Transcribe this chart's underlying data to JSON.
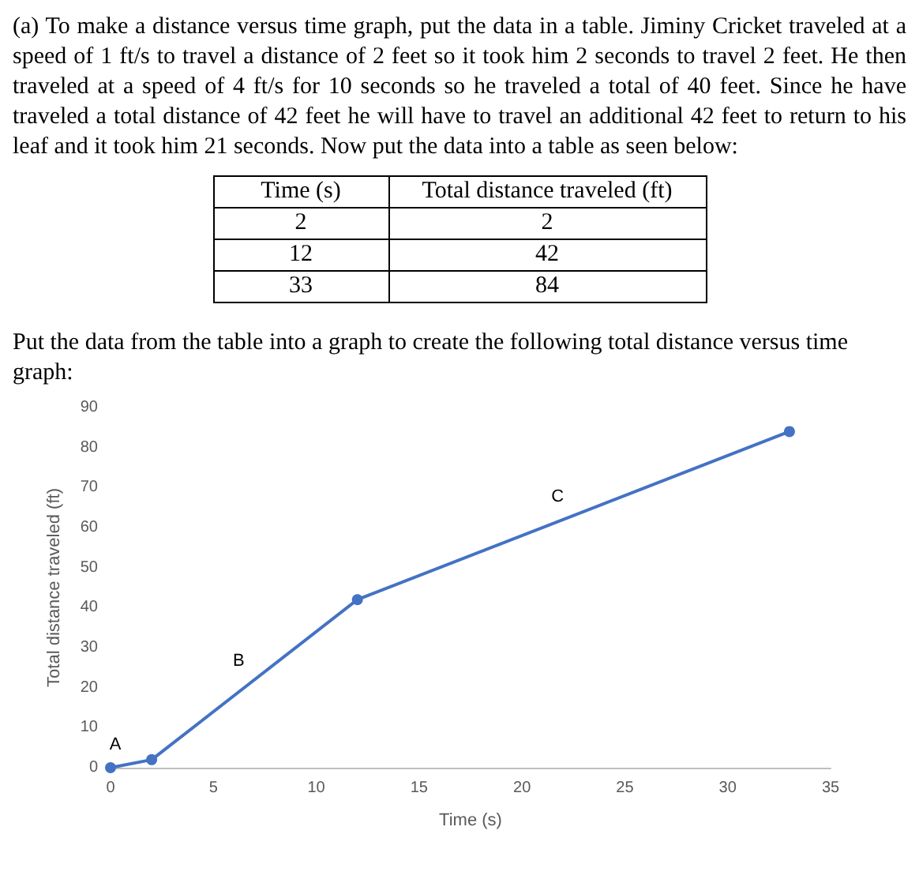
{
  "chart_data": {
    "type": "line",
    "annotations": [
      "(a) To make a distance versus time graph, put the data in a table.  Jiminy Cricket traveled at a speed of 1 ft/s to travel a distance of 2 feet so it took him 2 seconds to travel 2 feet.  He then traveled at a speed of 4 ft/s for 10 seconds so he traveled a total of 40 feet.  Since he have traveled a total distance of 42 feet he will have to travel an additional 42 feet to return to his leaf and it took him 21 seconds. Now put the data into a table as seen below:",
      "Time (s)",
      "Total distance traveled (ft)",
      "2",
      "2",
      "12",
      "42",
      "33",
      "84",
      "Put the data from the table into a graph to create the following total distance versus time graph:",
      "A",
      "B",
      "C"
    ],
    "xlabel": "Time (s)",
    "ylabel": "Total distance traveled (ft)",
    "x": [
      0,
      2,
      12,
      33
    ],
    "values": [
      0,
      2,
      42,
      84
    ],
    "color": "#4472c4",
    "xlim": [
      0,
      35
    ],
    "xticks": [
      0,
      5,
      10,
      15,
      20,
      25,
      30,
      35
    ],
    "ylim": [
      0,
      90
    ],
    "yticks": [
      0,
      10,
      20,
      30,
      40,
      50,
      60,
      70,
      80,
      90
    ],
    "marker": "circle",
    "line_style": "solid"
  }
}
